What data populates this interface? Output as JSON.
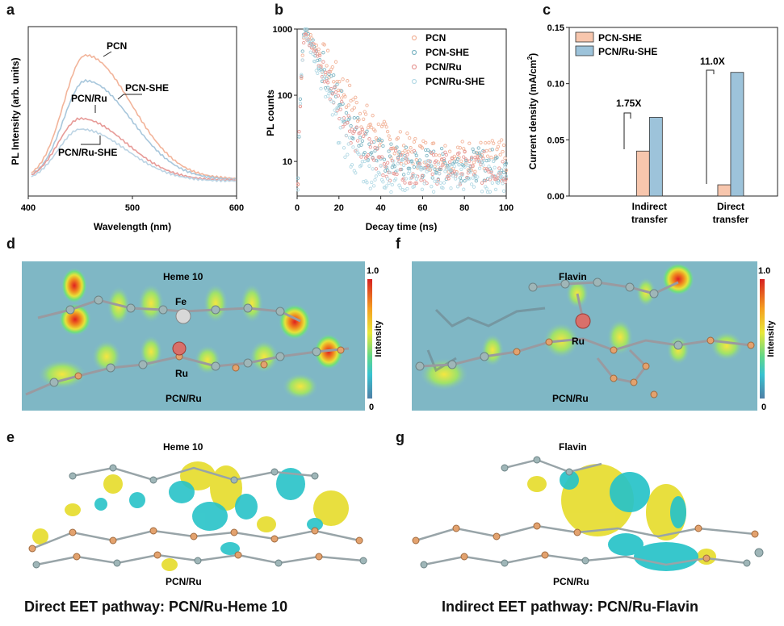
{
  "panels": {
    "a": "a",
    "b": "b",
    "c": "c",
    "d": "d",
    "e": "e",
    "f": "f",
    "g": "g"
  },
  "chart_data": [
    {
      "id": "a",
      "type": "line",
      "xlabel": "Wavelength (nm)",
      "ylabel": "PL Intensity (arb. units)",
      "xlim": [
        400,
        600
      ],
      "xticks": [
        "400",
        "500",
        "600"
      ],
      "yticks_shown": false,
      "series": [
        {
          "name": "PCN",
          "color": "#f2b49a",
          "peak_x": 455,
          "peak_y": 1.0
        },
        {
          "name": "PCN-SHE",
          "color": "#a8c7dc",
          "peak_x": 455,
          "peak_y": 0.8
        },
        {
          "name": "PCN/Ru",
          "color": "#e79b98",
          "peak_x": 450,
          "peak_y": 0.5
        },
        {
          "name": "PCN/Ru-SHE",
          "color": "#bcd4e4",
          "peak_x": 450,
          "peak_y": 0.42
        }
      ],
      "labels": [
        "PCN",
        "PCN-SHE",
        "PCN/Ru",
        "PCN/Ru-SHE"
      ]
    },
    {
      "id": "b",
      "type": "scatter",
      "xlabel": "Decay time (ns)",
      "ylabel": "PL counts",
      "xlim": [
        0,
        100
      ],
      "ylim_log": [
        3,
        1000
      ],
      "xticks": [
        "0",
        "20",
        "40",
        "60",
        "80",
        "100"
      ],
      "yticks": [
        "10",
        "100",
        "1000"
      ],
      "series": [
        {
          "name": "PCN",
          "color": "#f2b49a",
          "tau": 8.5,
          "floor": 12
        },
        {
          "name": "PCN-SHE",
          "color": "#7fb6c4",
          "tau": 6.5,
          "floor": 9
        },
        {
          "name": "PCN/Ru",
          "color": "#e79b98",
          "tau": 6.0,
          "floor": 8
        },
        {
          "name": "PCN/Ru-SHE",
          "color": "#b6dbe6",
          "tau": 4.5,
          "floor": 6
        }
      ]
    },
    {
      "id": "c",
      "type": "bar",
      "ylabel": "Current density (mA/cm",
      "ylabel_sup": "2",
      "ylabel_end": ")",
      "ylim": [
        0,
        0.15
      ],
      "yticks": [
        "0.00",
        "0.05",
        "0.10",
        "0.15"
      ],
      "categories": [
        "Indirect transfer",
        "Direct transfer"
      ],
      "category_lines": [
        [
          "Indirect",
          "transfer"
        ],
        [
          "Direct",
          "transfer"
        ]
      ],
      "series": [
        {
          "name": "PCN-SHE",
          "color": "#f7c6ad",
          "values": [
            0.04,
            0.01
          ]
        },
        {
          "name": "PCN/Ru-SHE",
          "color": "#9dc3da",
          "values": [
            0.07,
            0.11
          ]
        }
      ],
      "annotations": [
        "1.75X",
        "11.0X"
      ]
    }
  ],
  "maps": {
    "d": {
      "top": "Heme 10",
      "metal": "Fe",
      "ru": "Ru",
      "bottom": "PCN/Ru"
    },
    "f": {
      "top": "Flavin",
      "ru": "Ru",
      "bottom": "PCN/Ru"
    },
    "colorbar": {
      "max": "1.0",
      "min": "0",
      "title": "Intensity"
    }
  },
  "structures": {
    "e": {
      "top": "Heme 10",
      "bottom": "PCN/Ru"
    },
    "g": {
      "top": "Flavin",
      "bottom": "PCN/Ru"
    }
  },
  "captions": {
    "left": "Direct EET pathway: PCN/Ru-Heme 10",
    "right": "Indirect EET pathway: PCN/Ru-Flavin"
  }
}
